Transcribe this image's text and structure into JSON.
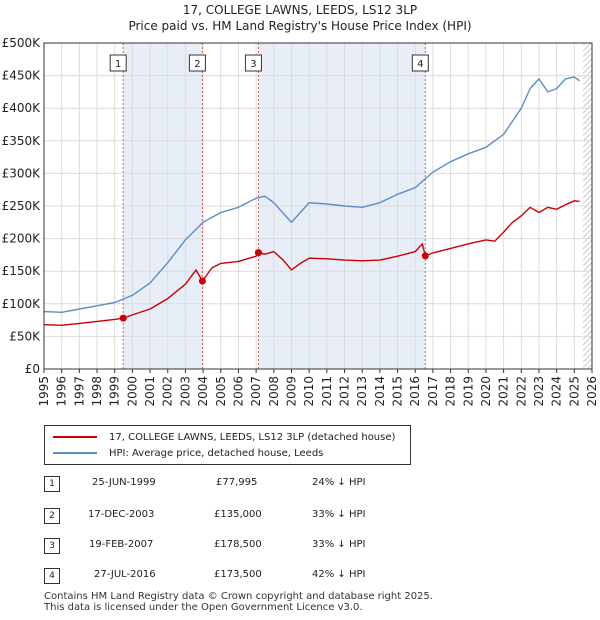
{
  "title": "17, COLLEGE LAWNS, LEEDS, LS12 3LP",
  "subtitle": "Price paid vs. HM Land Registry's House Price Index (HPI)",
  "colors": {
    "property": "#cc0000",
    "hpi": "#5b8ec8",
    "shade": "#e8eef8",
    "marker_line": "#d06060"
  },
  "chart_data": {
    "type": "line",
    "title": "Price paid vs. HM Land Registry's House Price Index (HPI)",
    "xlabel": "",
    "ylabel": "",
    "xlim": [
      1995,
      2026
    ],
    "ylim": [
      0,
      500000
    ],
    "grid": true,
    "x_ticks": [
      "1995",
      "1996",
      "1997",
      "1998",
      "1999",
      "2000",
      "2001",
      "2002",
      "2003",
      "2004",
      "2005",
      "2006",
      "2007",
      "2008",
      "2009",
      "2010",
      "2011",
      "2012",
      "2013",
      "2014",
      "2015",
      "2016",
      "2017",
      "2018",
      "2019",
      "2020",
      "2021",
      "2022",
      "2023",
      "2024",
      "2025",
      "2026"
    ],
    "y_ticks": [
      "£0",
      "£50K",
      "£100K",
      "£150K",
      "£200K",
      "£250K",
      "£300K",
      "£350K",
      "£400K",
      "£450K",
      "£500K"
    ],
    "series": [
      {
        "name": "17, COLLEGE LAWNS, LEEDS, LS12 3LP (detached house)",
        "color": "#cc0000",
        "x": [
          1995,
          1996,
          1997,
          1998,
          1999,
          1999.48,
          2000,
          2001,
          2002,
          2003,
          2003.6,
          2003.96,
          2004.5,
          2005,
          2006,
          2007,
          2007.13,
          2007.5,
          2008,
          2008.5,
          2009,
          2009.5,
          2010,
          2011,
          2012,
          2013,
          2014,
          2015,
          2016,
          2016.4,
          2016.57,
          2017,
          2018,
          2019,
          2020,
          2020.5,
          2021,
          2021.5,
          2022,
          2022.5,
          2023,
          2023.5,
          2024,
          2024.5,
          2025,
          2025.3
        ],
        "y": [
          68000,
          67000,
          70000,
          73000,
          76000,
          77995,
          83000,
          92000,
          108000,
          130000,
          152000,
          135000,
          155000,
          162000,
          165000,
          173000,
          178500,
          176000,
          180000,
          168000,
          152000,
          162000,
          170000,
          169000,
          167000,
          166000,
          167000,
          173000,
          180000,
          192000,
          173500,
          178000,
          185000,
          192000,
          198000,
          196000,
          210000,
          225000,
          235000,
          248000,
          240000,
          248000,
          245000,
          252000,
          258000,
          257000
        ]
      },
      {
        "name": "HPI: Average price, detached house, Leeds",
        "color": "#5b8ec8",
        "x": [
          1995,
          1996,
          1997,
          1998,
          1999,
          2000,
          2001,
          2002,
          2003,
          2004,
          2005,
          2006,
          2007,
          2007.5,
          2008,
          2008.5,
          2009,
          2009.5,
          2010,
          2011,
          2012,
          2013,
          2014,
          2015,
          2016,
          2016.5,
          2017,
          2018,
          2019,
          2020,
          2021,
          2022,
          2022.5,
          2023,
          2023.5,
          2024,
          2024.5,
          2025,
          2025.3
        ],
        "y": [
          88000,
          87000,
          92000,
          97000,
          102000,
          113000,
          132000,
          163000,
          198000,
          225000,
          240000,
          248000,
          262000,
          265000,
          255000,
          240000,
          225000,
          240000,
          255000,
          253000,
          250000,
          248000,
          255000,
          268000,
          278000,
          290000,
          302000,
          318000,
          330000,
          340000,
          360000,
          400000,
          430000,
          445000,
          425000,
          430000,
          445000,
          448000,
          442000
        ]
      }
    ],
    "sales": [
      {
        "label": "1",
        "x": 1999.48,
        "price": 77995
      },
      {
        "label": "2",
        "x": 2003.96,
        "price": 135000
      },
      {
        "label": "3",
        "x": 2007.13,
        "price": 178500
      },
      {
        "label": "4",
        "x": 2016.57,
        "price": 173500
      }
    ],
    "shaded_ranges": [
      [
        1999.48,
        2003.96
      ],
      [
        2007.13,
        2016.57
      ]
    ],
    "hatched_from": 2025.5
  },
  "legend": {
    "property": "17, COLLEGE LAWNS, LEEDS, LS12 3LP (detached house)",
    "hpi": "HPI: Average price, detached house, Leeds"
  },
  "transactions": [
    {
      "label": "1",
      "date": "25-JUN-1999",
      "price": "£77,995",
      "diff": "24% ↓ HPI"
    },
    {
      "label": "2",
      "date": "17-DEC-2003",
      "price": "£135,000",
      "diff": "33% ↓ HPI"
    },
    {
      "label": "3",
      "date": "19-FEB-2007",
      "price": "£178,500",
      "diff": "33% ↓ HPI"
    },
    {
      "label": "4",
      "date": "27-JUL-2016",
      "price": "£173,500",
      "diff": "42% ↓ HPI"
    }
  ],
  "footer": {
    "line1": "Contains HM Land Registry data © Crown copyright and database right 2025.",
    "line2": "This data is licensed under the Open Government Licence v3.0."
  }
}
